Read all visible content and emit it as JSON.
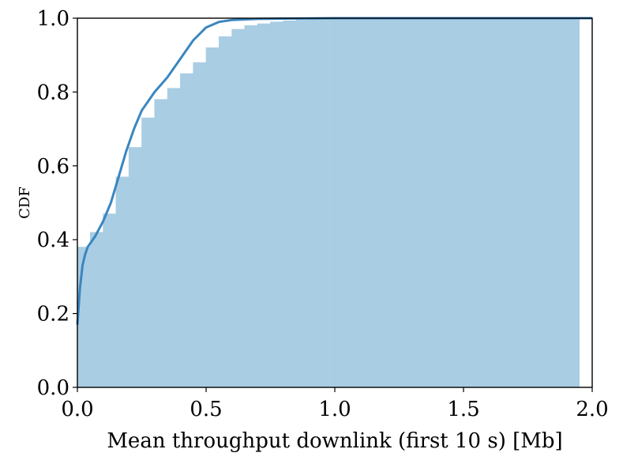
{
  "chart_data": {
    "type": "area",
    "title": "",
    "xlabel": "Mean throughput downlink (first 10 s) [Mb]",
    "ylabel": "CDF",
    "xlim": [
      0.0,
      2.0
    ],
    "ylim": [
      0.0,
      1.0
    ],
    "xticks": [
      0.0,
      0.5,
      1.0,
      1.5,
      2.0
    ],
    "xtick_labels": [
      "0.0",
      "0.5",
      "1.0",
      "1.5",
      "2.0"
    ],
    "yticks": [
      0.0,
      0.2,
      0.4,
      0.6,
      0.8,
      1.0
    ],
    "ytick_labels": [
      "0.0",
      "0.2",
      "0.4",
      "0.6",
      "0.8",
      "1.0"
    ],
    "grid": false,
    "colors": {
      "bars": "#a9cde3",
      "line": "#3a86bf"
    },
    "histogram": {
      "bin_width": 0.05,
      "bin_edges_start": [
        0.0,
        0.05,
        0.1,
        0.15,
        0.2,
        0.25,
        0.3,
        0.35,
        0.4,
        0.45,
        0.5,
        0.55,
        0.6,
        0.65,
        0.7,
        0.75,
        0.8,
        0.85,
        0.9,
        0.95,
        1.0,
        1.05,
        1.1,
        1.15,
        1.2,
        1.25,
        1.3,
        1.35,
        1.4,
        1.45,
        1.5,
        1.55,
        1.6,
        1.65,
        1.7,
        1.75,
        1.8,
        1.85,
        1.9
      ],
      "cdf_values": [
        0.38,
        0.42,
        0.47,
        0.57,
        0.65,
        0.73,
        0.78,
        0.81,
        0.85,
        0.88,
        0.92,
        0.95,
        0.97,
        0.98,
        0.985,
        0.99,
        0.993,
        0.995,
        0.997,
        0.998,
        0.998,
        0.999,
        0.999,
        0.999,
        0.999,
        1.0,
        1.0,
        1.0,
        1.0,
        1.0,
        1.0,
        1.0,
        1.0,
        1.0,
        1.0,
        1.0,
        1.0,
        1.0,
        1.0
      ],
      "last_edge": 1.95
    },
    "kde_cdf": {
      "x": [
        0.0,
        0.01,
        0.02,
        0.03,
        0.04,
        0.05,
        0.07,
        0.1,
        0.13,
        0.16,
        0.19,
        0.22,
        0.25,
        0.3,
        0.35,
        0.4,
        0.45,
        0.5,
        0.55,
        0.6,
        0.7,
        0.8,
        1.0,
        1.2,
        1.5,
        1.8,
        2.0
      ],
      "y": [
        0.17,
        0.27,
        0.33,
        0.36,
        0.38,
        0.39,
        0.41,
        0.45,
        0.5,
        0.57,
        0.64,
        0.7,
        0.75,
        0.8,
        0.84,
        0.89,
        0.94,
        0.975,
        0.99,
        0.995,
        0.998,
        0.999,
        1.0,
        1.0,
        1.0,
        1.0,
        1.0
      ]
    }
  }
}
